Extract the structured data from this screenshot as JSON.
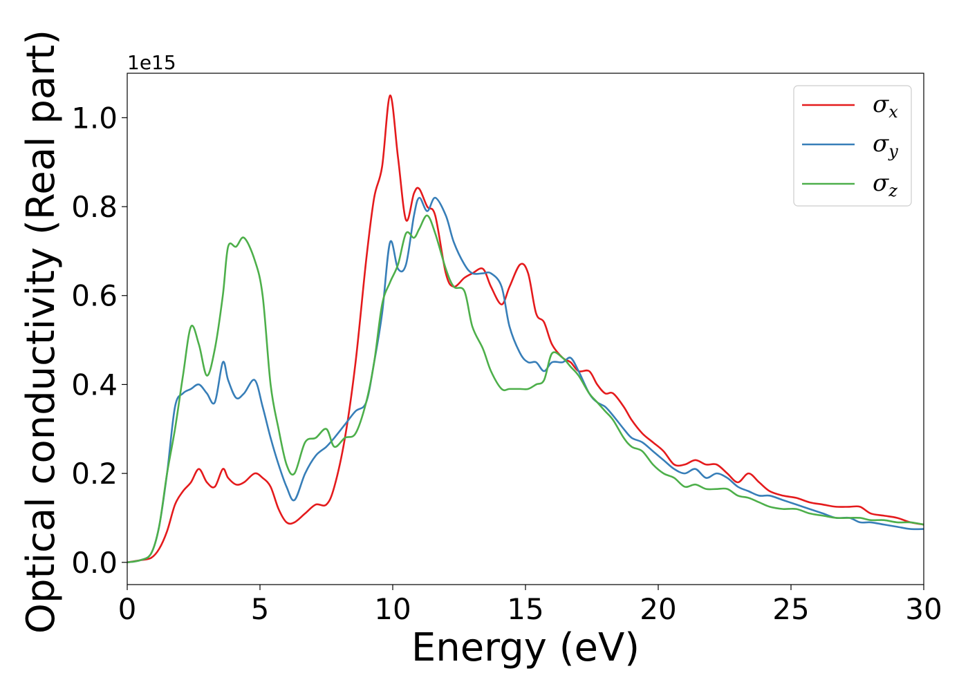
{
  "chart_data": {
    "type": "line",
    "xlabel": "Energy (eV)",
    "ylabel": "Optical conductivity (Real part)",
    "y_offset_label": "1e15",
    "xlim": [
      0,
      30
    ],
    "ylim": [
      -0.05,
      1.1
    ],
    "xticks": [
      0,
      5,
      10,
      15,
      20,
      25,
      30
    ],
    "yticks": [
      0.0,
      0.2,
      0.4,
      0.6,
      0.8,
      1.0
    ],
    "xtick_labels": [
      "0",
      "5",
      "10",
      "15",
      "20",
      "25",
      "30"
    ],
    "ytick_labels": [
      "0.0",
      "0.2",
      "0.4",
      "0.6",
      "0.8",
      "1.0"
    ],
    "grid": false,
    "legend_position": "top-right",
    "series": [
      {
        "name": "σx",
        "base": "σ",
        "sub": "x",
        "color": "#e41a1c",
        "x": [
          0,
          0.5,
          0.9,
          1.2,
          1.5,
          1.8,
          2.1,
          2.4,
          2.7,
          3.0,
          3.3,
          3.6,
          3.8,
          4.1,
          4.4,
          4.8,
          5.1,
          5.4,
          5.7,
          6.0,
          6.3,
          6.7,
          7.1,
          7.5,
          7.8,
          8.2,
          8.6,
          9.0,
          9.3,
          9.6,
          9.9,
          10.2,
          10.5,
          10.8,
          11.0,
          11.3,
          11.6,
          12.0,
          12.3,
          12.7,
          13.0,
          13.4,
          13.7,
          14.1,
          14.4,
          14.8,
          15.1,
          15.4,
          15.7,
          16.0,
          16.4,
          16.7,
          17.0,
          17.4,
          17.7,
          18.0,
          18.3,
          18.7,
          19.0,
          19.4,
          19.8,
          20.2,
          20.6,
          21.0,
          21.4,
          21.8,
          22.2,
          22.6,
          23.0,
          23.4,
          23.8,
          24.2,
          24.7,
          25.2,
          25.7,
          26.2,
          26.7,
          27.2,
          27.6,
          28.0,
          28.5,
          29.0,
          29.5,
          30.0
        ],
        "y": [
          0.0,
          0.005,
          0.01,
          0.03,
          0.07,
          0.13,
          0.16,
          0.18,
          0.21,
          0.18,
          0.17,
          0.21,
          0.19,
          0.175,
          0.18,
          0.2,
          0.19,
          0.17,
          0.12,
          0.09,
          0.09,
          0.11,
          0.13,
          0.13,
          0.17,
          0.28,
          0.45,
          0.68,
          0.82,
          0.89,
          1.05,
          0.91,
          0.77,
          0.83,
          0.84,
          0.8,
          0.78,
          0.65,
          0.62,
          0.64,
          0.65,
          0.66,
          0.62,
          0.58,
          0.62,
          0.67,
          0.65,
          0.56,
          0.54,
          0.49,
          0.46,
          0.45,
          0.43,
          0.43,
          0.4,
          0.38,
          0.38,
          0.35,
          0.32,
          0.29,
          0.27,
          0.25,
          0.22,
          0.22,
          0.23,
          0.22,
          0.22,
          0.2,
          0.18,
          0.2,
          0.18,
          0.16,
          0.15,
          0.145,
          0.135,
          0.13,
          0.125,
          0.125,
          0.125,
          0.11,
          0.105,
          0.1,
          0.09,
          0.085
        ]
      },
      {
        "name": "σy",
        "base": "σ",
        "sub": "y",
        "color": "#377eb8",
        "x": [
          0,
          0.5,
          0.9,
          1.2,
          1.5,
          1.8,
          2.1,
          2.4,
          2.7,
          3.0,
          3.3,
          3.6,
          3.8,
          4.1,
          4.4,
          4.8,
          5.1,
          5.4,
          5.7,
          6.0,
          6.3,
          6.7,
          7.1,
          7.5,
          7.8,
          8.2,
          8.6,
          9.0,
          9.3,
          9.6,
          9.9,
          10.2,
          10.5,
          10.8,
          11.0,
          11.3,
          11.6,
          12.0,
          12.3,
          12.7,
          13.0,
          13.4,
          13.7,
          14.1,
          14.4,
          14.8,
          15.1,
          15.4,
          15.7,
          16.0,
          16.4,
          16.7,
          17.0,
          17.4,
          17.7,
          18.0,
          18.3,
          18.7,
          19.0,
          19.4,
          19.8,
          20.2,
          20.6,
          21.0,
          21.4,
          21.8,
          22.2,
          22.6,
          23.0,
          23.4,
          23.8,
          24.2,
          24.7,
          25.2,
          25.7,
          26.2,
          26.7,
          27.2,
          27.6,
          28.0,
          28.5,
          29.0,
          29.5,
          30.0
        ],
        "y": [
          0.0,
          0.005,
          0.02,
          0.08,
          0.2,
          0.35,
          0.38,
          0.39,
          0.4,
          0.38,
          0.36,
          0.45,
          0.41,
          0.37,
          0.38,
          0.41,
          0.35,
          0.28,
          0.22,
          0.17,
          0.14,
          0.2,
          0.24,
          0.26,
          0.28,
          0.31,
          0.34,
          0.36,
          0.45,
          0.56,
          0.72,
          0.66,
          0.67,
          0.78,
          0.82,
          0.79,
          0.82,
          0.78,
          0.72,
          0.67,
          0.65,
          0.65,
          0.65,
          0.62,
          0.53,
          0.47,
          0.45,
          0.45,
          0.43,
          0.45,
          0.45,
          0.46,
          0.43,
          0.38,
          0.36,
          0.35,
          0.33,
          0.3,
          0.28,
          0.27,
          0.25,
          0.23,
          0.21,
          0.2,
          0.21,
          0.19,
          0.2,
          0.19,
          0.17,
          0.16,
          0.15,
          0.15,
          0.14,
          0.13,
          0.12,
          0.11,
          0.1,
          0.1,
          0.09,
          0.09,
          0.085,
          0.08,
          0.075,
          0.075
        ]
      },
      {
        "name": "σz",
        "base": "σ",
        "sub": "z",
        "color": "#4daf4a",
        "x": [
          0,
          0.5,
          0.9,
          1.2,
          1.5,
          1.8,
          2.1,
          2.4,
          2.7,
          3.0,
          3.3,
          3.6,
          3.8,
          4.1,
          4.4,
          4.8,
          5.1,
          5.4,
          5.7,
          6.0,
          6.3,
          6.7,
          7.1,
          7.5,
          7.8,
          8.2,
          8.6,
          9.0,
          9.3,
          9.6,
          9.9,
          10.2,
          10.5,
          10.8,
          11.0,
          11.3,
          11.6,
          12.0,
          12.3,
          12.7,
          13.0,
          13.4,
          13.7,
          14.1,
          14.4,
          14.8,
          15.1,
          15.4,
          15.7,
          16.0,
          16.4,
          16.7,
          17.0,
          17.4,
          17.7,
          18.0,
          18.3,
          18.7,
          19.0,
          19.4,
          19.8,
          20.2,
          20.6,
          21.0,
          21.4,
          21.8,
          22.2,
          22.6,
          23.0,
          23.4,
          23.8,
          24.2,
          24.7,
          25.2,
          25.7,
          26.2,
          26.7,
          27.2,
          27.6,
          28.0,
          28.5,
          29.0,
          29.5,
          30.0
        ],
        "y": [
          0.0,
          0.005,
          0.02,
          0.08,
          0.2,
          0.3,
          0.42,
          0.53,
          0.49,
          0.42,
          0.48,
          0.6,
          0.71,
          0.71,
          0.73,
          0.68,
          0.6,
          0.4,
          0.3,
          0.22,
          0.2,
          0.27,
          0.28,
          0.3,
          0.26,
          0.28,
          0.29,
          0.36,
          0.45,
          0.58,
          0.63,
          0.67,
          0.74,
          0.73,
          0.75,
          0.78,
          0.74,
          0.66,
          0.62,
          0.61,
          0.53,
          0.48,
          0.43,
          0.39,
          0.39,
          0.39,
          0.39,
          0.4,
          0.41,
          0.47,
          0.46,
          0.44,
          0.42,
          0.38,
          0.36,
          0.34,
          0.32,
          0.28,
          0.26,
          0.25,
          0.22,
          0.2,
          0.19,
          0.17,
          0.175,
          0.165,
          0.165,
          0.165,
          0.15,
          0.145,
          0.135,
          0.125,
          0.12,
          0.12,
          0.11,
          0.105,
          0.1,
          0.1,
          0.1,
          0.095,
          0.095,
          0.09,
          0.09,
          0.085
        ]
      }
    ]
  }
}
